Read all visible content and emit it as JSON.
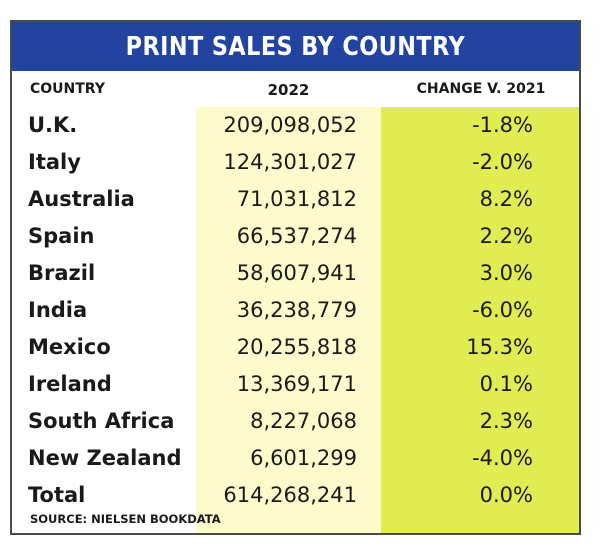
{
  "chart_data": {
    "type": "table",
    "title": "PRINT SALES BY COUNTRY",
    "columns": [
      "COUNTRY",
      "2022",
      "CHANGE V. 2021"
    ],
    "rows": [
      {
        "country": "U.K.",
        "sales_2022": "209,098,052",
        "change": "-1.8%"
      },
      {
        "country": "Italy",
        "sales_2022": "124,301,027",
        "change": "-2.0%"
      },
      {
        "country": "Australia",
        "sales_2022": "71,031,812",
        "change": "8.2%"
      },
      {
        "country": "Spain",
        "sales_2022": "66,537,274",
        "change": "2.2%"
      },
      {
        "country": "Brazil",
        "sales_2022": "58,607,941",
        "change": "3.0%"
      },
      {
        "country": "India",
        "sales_2022": "36,238,779",
        "change": "-6.0%"
      },
      {
        "country": "Mexico",
        "sales_2022": "20,255,818",
        "change": "15.3%"
      },
      {
        "country": "Ireland",
        "sales_2022": "13,369,171",
        "change": "0.1%"
      },
      {
        "country": "South Africa",
        "sales_2022": "8,227,068",
        "change": "2.3%"
      },
      {
        "country": "New Zealand",
        "sales_2022": "6,601,299",
        "change": "-4.0%"
      },
      {
        "country": "Total",
        "sales_2022": "614,268,241",
        "change": "0.0%"
      }
    ],
    "source": "SOURCE: NIELSEN BOOKDATA"
  },
  "colors": {
    "title_bar": "#2244a0",
    "column_2022": "#fdfbcc",
    "column_change": "#e0ec52",
    "border": "#4a4a4a"
  }
}
